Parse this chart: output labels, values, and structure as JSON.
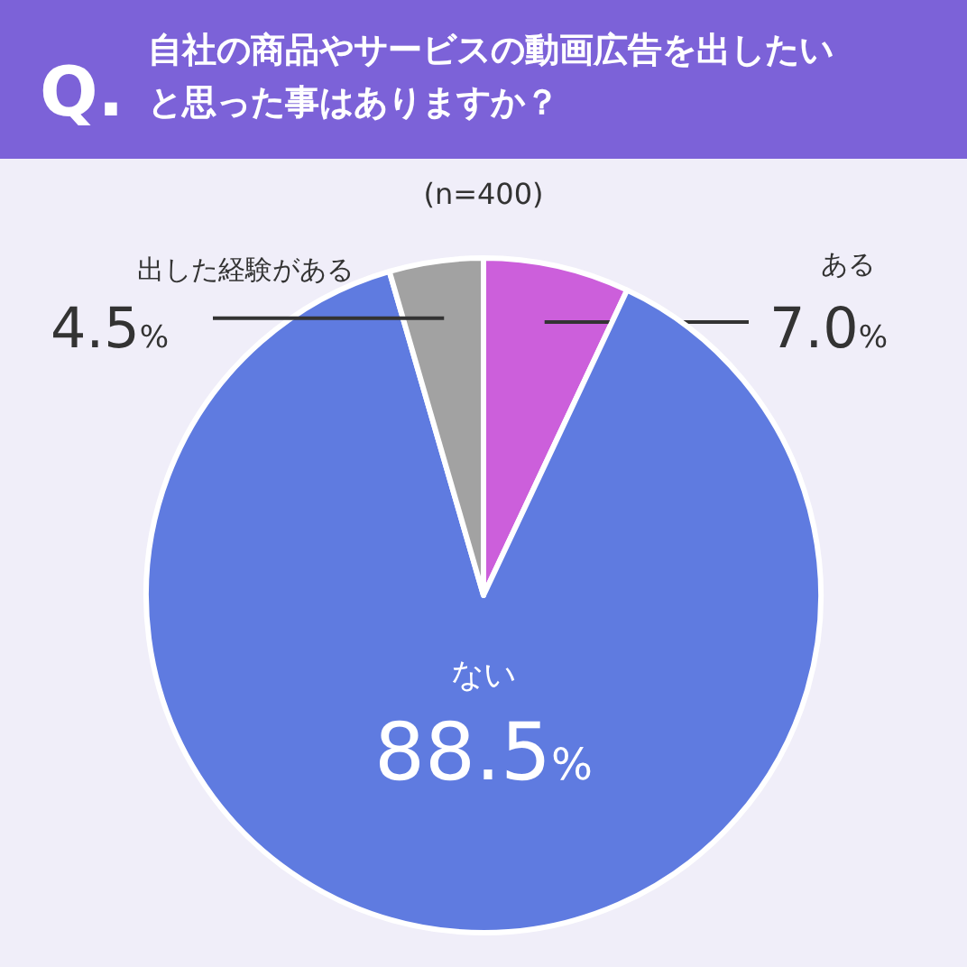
{
  "chart_data": {
    "type": "pie",
    "title": "自社の商品やサービスの動画広告を出したいと思った事はありますか？",
    "annotations": [
      "Q.",
      "(n=400)"
    ],
    "categories": [
      "ある",
      "ない",
      "出した経験がある"
    ],
    "values": [
      7.0,
      88.5,
      4.5
    ],
    "colors": [
      "#cc5fdb",
      "#5f7be0",
      "#a2a2a2"
    ],
    "value_labels": [
      "7.0%",
      "88.5%",
      "4.5%"
    ]
  }
}
